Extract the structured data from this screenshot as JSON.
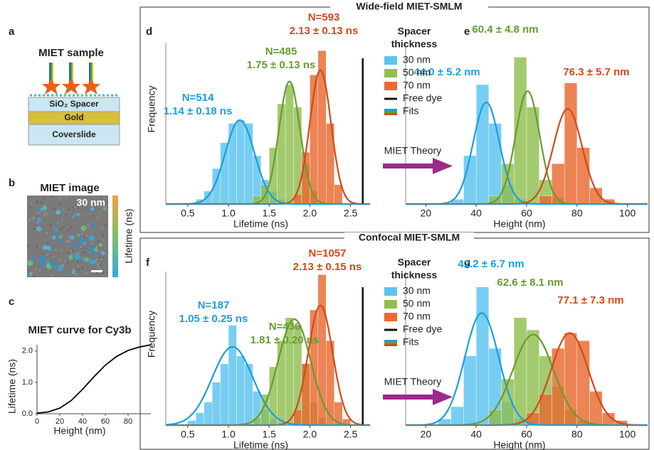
{
  "panel_labels": [
    "a",
    "b",
    "c",
    "d",
    "e",
    "f",
    "g"
  ],
  "sample": {
    "title": "MIET sample",
    "layers": [
      "SiO₂ Spacer",
      "Gold",
      "Coverslide"
    ]
  },
  "image": {
    "title": "MIET image",
    "annotation": "30 nm",
    "colorbar_label": "Lifetime (ns)"
  },
  "sections": [
    {
      "title": "Wide-field MIET-SMLM",
      "legend_title": [
        "Spacer",
        "thickness"
      ],
      "legend_extra": [
        "Free dye",
        "Fits"
      ],
      "arrow_label": "MIET Theory"
    },
    {
      "title": "Confocal MIET-SMLM",
      "legend_title": [
        "Spacer",
        "thickness"
      ],
      "legend_extra": [
        "Free dye",
        "Fits"
      ],
      "arrow_label": "MIET Theory"
    }
  ],
  "chart_data": [
    {
      "type": "line",
      "title": "MIET curve for Cy3b",
      "xlabel": "Height (nm)",
      "ylabel": "Lifetime (ns)",
      "x": [
        0,
        10,
        20,
        30,
        40,
        50,
        60,
        70,
        80,
        90,
        100
      ],
      "values": [
        0.02,
        0.06,
        0.18,
        0.42,
        0.78,
        1.18,
        1.55,
        1.83,
        2.02,
        2.13,
        2.2
      ],
      "color": "#000000",
      "xlim": [
        0,
        100
      ],
      "xticks": [
        0,
        20,
        40,
        60,
        80
      ],
      "ylim": [
        0,
        2.2
      ],
      "yticks": [
        {
          "value": 0,
          "label": "0.0"
        },
        {
          "value": 1,
          "label": "1.0"
        },
        {
          "value": 2,
          "label": "2.0"
        }
      ]
    },
    {
      "type": "histogram",
      "xlabel": "Lifetime (ns)",
      "ylabel": "Frequency",
      "xlim": [
        0.23,
        2.74
      ],
      "ylim": [
        0,
        100
      ],
      "xticks": [
        0.5,
        {
          "value": 1,
          "label": "1.0"
        },
        1.5,
        {
          "value": 2,
          "label": "2.0"
        },
        2.5
      ],
      "free_dye": 2.65,
      "series": [
        {
          "name": "30 nm",
          "color": "#5bc4f0",
          "bins": [
            0.6,
            0.7,
            0.8,
            0.9,
            1.0,
            1.1,
            1.2,
            1.3,
            1.4,
            1.5,
            1.6,
            1.7
          ],
          "values": [
            3,
            8,
            22,
            38,
            50,
            52,
            50,
            30,
            15,
            8,
            3
          ],
          "fit": {
            "mean": 1.14,
            "sd": 0.18,
            "peak": 52,
            "color": "#1a9ee0"
          },
          "labels": [
            "N=514",
            "1.14 ± 0.18 ns"
          ]
        },
        {
          "name": "50 nm",
          "color": "#8fbf50",
          "bins": [
            1.3,
            1.4,
            1.5,
            1.6,
            1.7,
            1.8,
            1.9,
            2.0,
            2.1
          ],
          "values": [
            5,
            12,
            35,
            62,
            74,
            60,
            25,
            8
          ],
          "fit": {
            "mean": 1.75,
            "sd": 0.13,
            "peak": 76,
            "color": "#6a9a30"
          },
          "labels": [
            "N=485",
            "1.75 ± 0.13 ns"
          ]
        },
        {
          "name": "70 nm",
          "color": "#e86a30",
          "bins": [
            1.8,
            1.9,
            2.0,
            2.1,
            2.2,
            2.3,
            2.4
          ],
          "values": [
            6,
            32,
            80,
            95,
            50,
            12
          ],
          "fit": {
            "mean": 2.13,
            "sd": 0.13,
            "peak": 83,
            "color": "#d04a18"
          },
          "labels": [
            "N=593",
            "2.13 ± 0.13 ns"
          ]
        }
      ]
    },
    {
      "type": "histogram",
      "xlabel": "Height (nm)",
      "xlim": [
        12,
        108
      ],
      "ylim": [
        0,
        100
      ],
      "xticks": [
        20,
        40,
        60,
        80,
        100
      ],
      "series": [
        {
          "color": "#5bc4f0",
          "bins": [
            30,
            35,
            40,
            45,
            50,
            55,
            60
          ],
          "values": [
            3,
            30,
            74,
            50,
            12,
            3
          ],
          "fit": {
            "mean": 44.0,
            "sd": 5.2,
            "peak": 63,
            "color": "#1a9ee0"
          },
          "labels": [
            "44.0 ± 5.2 nm"
          ]
        },
        {
          "color": "#8fbf50",
          "bins": [
            45,
            50,
            55,
            60,
            65,
            70,
            75
          ],
          "values": [
            5,
            25,
            91,
            60,
            15,
            4
          ],
          "fit": {
            "mean": 60.4,
            "sd": 4.8,
            "peak": 70,
            "color": "#6a9a30"
          },
          "labels": [
            "60.4 ± 4.8 nm"
          ]
        },
        {
          "color": "#e86a30",
          "bins": [
            65,
            70,
            75,
            80,
            85,
            90,
            95
          ],
          "values": [
            5,
            25,
            75,
            35,
            10,
            3
          ],
          "fit": {
            "mean": 76.3,
            "sd": 5.7,
            "peak": 59,
            "color": "#d04a18"
          },
          "labels": [
            "76.3 ± 5.7 nm"
          ]
        }
      ]
    },
    {
      "type": "histogram",
      "xlabel": "Lifetime (ns)",
      "ylabel": "Frequency",
      "xlim": [
        0.23,
        2.74
      ],
      "ylim": [
        0,
        100
      ],
      "xticks": [
        0.5,
        {
          "value": 1,
          "label": "1.0"
        },
        1.5,
        {
          "value": 2,
          "label": "2.0"
        },
        2.5
      ],
      "free_dye": 2.65,
      "series": [
        {
          "name": "30 nm",
          "color": "#5bc4f0",
          "bins": [
            0.5,
            0.6,
            0.7,
            0.8,
            0.9,
            1.0,
            1.1,
            1.2,
            1.3,
            1.4,
            1.5,
            1.6
          ],
          "values": [
            3,
            8,
            15,
            28,
            40,
            65,
            45,
            40,
            22,
            10,
            4
          ],
          "fit": {
            "mean": 1.05,
            "sd": 0.25,
            "peak": 51,
            "color": "#1a9ee0"
          },
          "labels": [
            "N=187",
            "1.05 ± 0.25 ns"
          ]
        },
        {
          "name": "50 nm",
          "color": "#8fbf50",
          "bins": [
            1.3,
            1.4,
            1.5,
            1.6,
            1.7,
            1.8,
            1.9,
            2.0,
            2.1,
            2.2
          ],
          "values": [
            5,
            20,
            38,
            55,
            70,
            65,
            40,
            15,
            5
          ],
          "fit": {
            "mean": 1.81,
            "sd": 0.2,
            "peak": 69,
            "color": "#6a9a30"
          },
          "labels": [
            "N=436",
            "1.81 ± 0.20 ns"
          ]
        },
        {
          "name": "70 nm",
          "color": "#e86a30",
          "bins": [
            1.8,
            1.9,
            2.0,
            2.1,
            2.2,
            2.3,
            2.4,
            2.5
          ],
          "values": [
            10,
            40,
            75,
            98,
            55,
            15,
            4
          ],
          "fit": {
            "mean": 2.13,
            "sd": 0.15,
            "peak": 78,
            "color": "#d04a18"
          },
          "labels": [
            "N=1057",
            "2.13 ± 0.15 ns"
          ]
        }
      ]
    },
    {
      "type": "histogram",
      "xlabel": "Height (nm)",
      "xlim": [
        12,
        108
      ],
      "ylim": [
        0,
        100
      ],
      "xticks": [
        20,
        40,
        60,
        80,
        100
      ],
      "series": [
        {
          "color": "#5bc4f0",
          "bins": [
            25,
            30,
            35,
            40,
            45,
            50,
            55,
            60
          ],
          "values": [
            4,
            12,
            45,
            90,
            50,
            15,
            4
          ],
          "fit": {
            "mean": 42.2,
            "sd": 6.7,
            "peak": 73,
            "color": "#1a9ee0"
          },
          "labels": [
            "42.2 ± 6.7 nm"
          ]
        },
        {
          "color": "#8fbf50",
          "bins": [
            45,
            50,
            55,
            60,
            65,
            70,
            75,
            80,
            85
          ],
          "values": [
            10,
            30,
            70,
            62,
            45,
            25,
            10,
            3
          ],
          "fit": {
            "mean": 62.6,
            "sd": 8.1,
            "peak": 59,
            "color": "#6a9a30"
          },
          "labels": [
            "62.6 ± 8.1 nm"
          ]
        },
        {
          "color": "#e86a30",
          "bins": [
            60,
            65,
            70,
            75,
            80,
            85,
            90,
            95,
            100
          ],
          "values": [
            8,
            20,
            50,
            60,
            55,
            22,
            8,
            3
          ],
          "fit": {
            "mean": 77.1,
            "sd": 7.3,
            "peak": 60,
            "color": "#d04a18"
          },
          "labels": [
            "77.1 ± 7.3 nm"
          ]
        }
      ]
    }
  ]
}
